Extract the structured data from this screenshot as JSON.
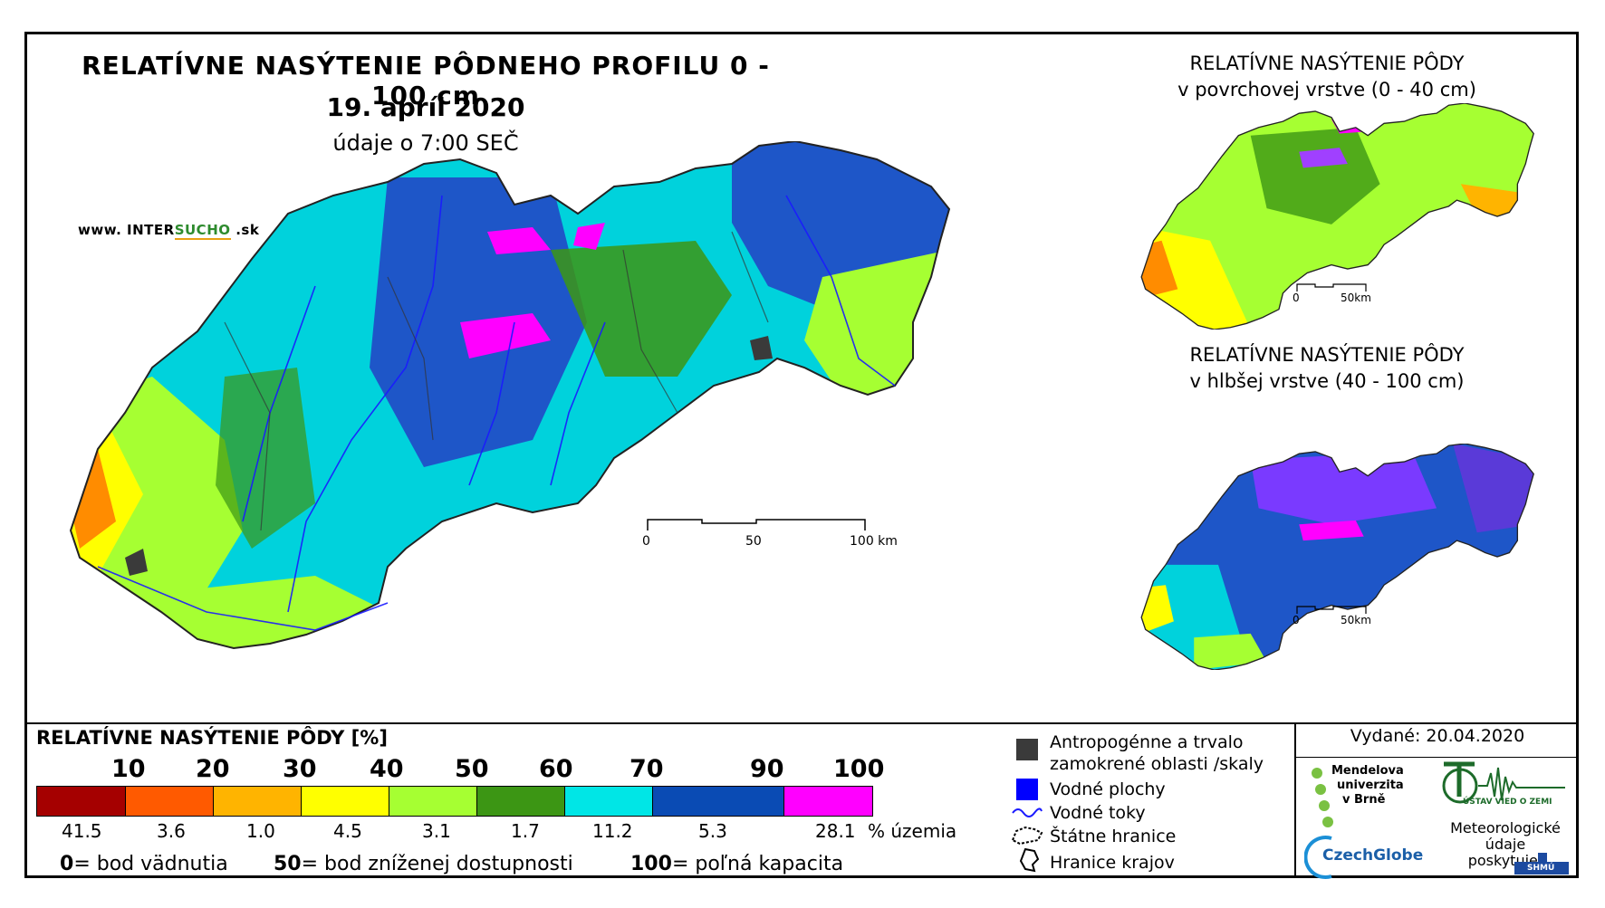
{
  "header": {
    "title": "RELATÍVNE NASÝTENIE PÔDNEHO PROFILU 0 - 100 cm",
    "date": "19. apríl 2020",
    "subtitle": "údaje o 7:00 SEČ",
    "brand_prefix": "www. INTER",
    "brand_highlight": "SUCHO",
    "brand_suffix": " .sk"
  },
  "main_map": {
    "scale_labels": [
      "0",
      "50",
      "100 km"
    ]
  },
  "inset_top": {
    "title_line1": "RELATÍVNE NASÝTENIE PÔDY",
    "title_line2": "v povrchovej vrstve (0 - 40 cm)",
    "scale_labels": [
      "0",
      "50km"
    ]
  },
  "inset_bottom": {
    "title_line1": "RELATÍVNE NASÝTENIE PÔDY",
    "title_line2": "v hlbšej vrstve (40 - 100 cm)",
    "scale_labels": [
      "0",
      "50km"
    ]
  },
  "legend": {
    "title": "RELATÍVNE NASÝTENIE PÔDY [%]",
    "ticks": [
      "10",
      "20",
      "30",
      "40",
      "50",
      "60",
      "70",
      "90",
      "100"
    ],
    "classes": [
      {
        "color": "#a50000",
        "percent": "41.5"
      },
      {
        "color": "#ff5a00",
        "percent": "3.6"
      },
      {
        "color": "#ffb400",
        "percent": "1.0"
      },
      {
        "color": "#ffff00",
        "percent": "4.5"
      },
      {
        "color": "#a6ff32",
        "percent": "3.1"
      },
      {
        "color": "#3c9614",
        "percent": "1.7"
      },
      {
        "color": "#00e6e6",
        "percent": "11.2"
      },
      {
        "color": "#0a4bb4",
        "percent": "5.3"
      },
      {
        "color": "#ff00ff",
        "percent": "28.1"
      }
    ],
    "percent_unit": "% územia",
    "definitions": [
      {
        "value": "0",
        "text": "= bod vädnutia"
      },
      {
        "value": "50",
        "text": "= bod zníženej dostupnosti"
      },
      {
        "value": "100",
        "text": "= poľná kapacita"
      }
    ]
  },
  "symbols": {
    "anthropogenic_line1": "Antropogénne a trvalo",
    "anthropogenic_line2": "zamokrené oblasti /skaly",
    "anthropogenic_color": "#3a3a3a",
    "water_bodies": "Vodné plochy",
    "water_color": "#0000ff",
    "streams": "Vodné toky",
    "state_border": "Štátne hranice",
    "region_border": "Hranice krajov"
  },
  "credits": {
    "issued": "Vydané: 20.04.2020",
    "mendel": [
      "Mendelova",
      "univerzita",
      "v Brně"
    ],
    "czechglobe": "CzechGlobe",
    "ustav": "ÚSTAV VIED O ZEMI",
    "meteo_line1": "Meteorologické",
    "meteo_line2": "údaje",
    "meteo_line3": "poskytuje:",
    "shmu": "SHMÚ"
  }
}
